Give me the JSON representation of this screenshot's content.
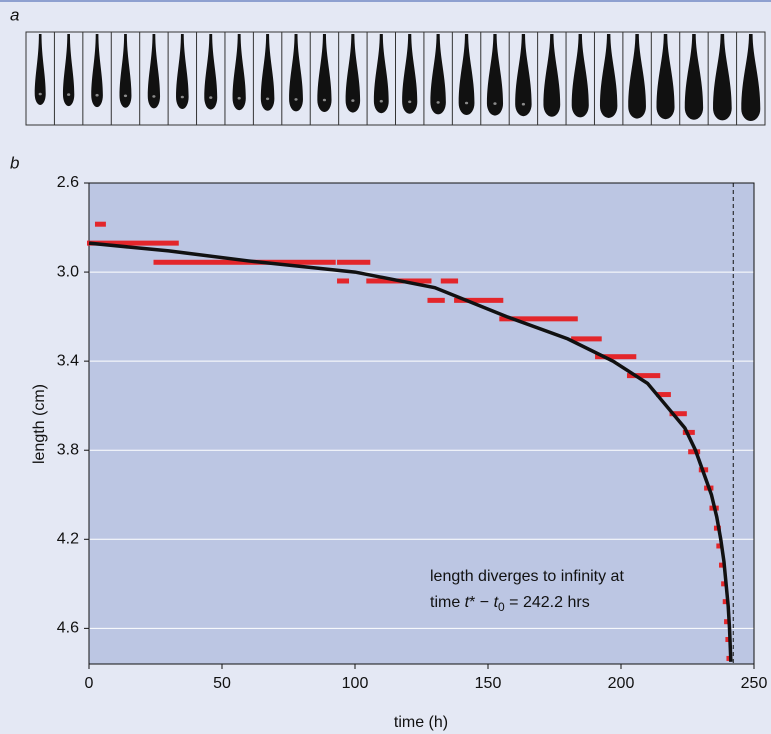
{
  "panel_a": {
    "label": "a"
  },
  "chart_data": {
    "type": "segments",
    "panel_label": "b",
    "x_label": "time (h)",
    "y_label": "length (cm)",
    "xlim": [
      0,
      250
    ],
    "xticks": [
      0,
      50,
      100,
      150,
      200,
      250
    ],
    "ylim": [
      2.6,
      4.76
    ],
    "y_inverted": true,
    "yticks": [
      2.6,
      {
        "value": 3,
        "label": "3.0"
      },
      3.4,
      3.8,
      4.2,
      4.6
    ],
    "grid": true,
    "measured": {
      "color": "#e3262b",
      "y": [
        2.785,
        2.87,
        2.956,
        2.956,
        3.04,
        3.04,
        3.04,
        3.127,
        3.127,
        3.21,
        3.3,
        3.38,
        3.465,
        3.55,
        3.636,
        3.72,
        3.807,
        3.888,
        3.97,
        4.06,
        4.15,
        4.23,
        4.316,
        4.4,
        4.48,
        4.57,
        4.65,
        4.735
      ],
      "x_from": [
        3,
        0,
        25,
        94,
        94,
        105,
        133,
        128,
        138,
        155,
        182,
        191,
        203,
        214,
        219,
        224,
        226,
        230,
        232,
        234,
        235.7,
        236.6,
        237.6,
        238.4,
        239,
        239.5,
        240,
        240.4
      ],
      "x_to": [
        5.6,
        33,
        92,
        105,
        97,
        128,
        138,
        133,
        155,
        183,
        192,
        205,
        214,
        218,
        224,
        227,
        229,
        232,
        234,
        236,
        236.8,
        237.4,
        238.4,
        239,
        239.6,
        240.1,
        240.6,
        241
      ]
    },
    "fit": {
      "color": "#111111",
      "x": [
        0,
        30,
        60,
        100,
        130,
        157,
        180,
        197,
        210,
        217,
        224,
        228,
        231,
        234,
        236,
        237.5,
        238.7,
        239.5,
        240.3,
        240.8,
        241.3
      ],
      "y": [
        2.87,
        2.905,
        2.95,
        3.0,
        3.07,
        3.2,
        3.3,
        3.4,
        3.5,
        3.6,
        3.7,
        3.8,
        3.9,
        4.0,
        4.1,
        4.2,
        4.3,
        4.4,
        4.5,
        4.6,
        4.75
      ]
    },
    "asymptote": 242.2,
    "annotation": {
      "line1": "length diverges to infinity at",
      "prefix": "time ",
      "t_star": "t",
      "star": "*",
      "minus": " − ",
      "t_zero": "t",
      "zero": "0",
      "equals": " = ",
      "unit": " hrs"
    }
  }
}
